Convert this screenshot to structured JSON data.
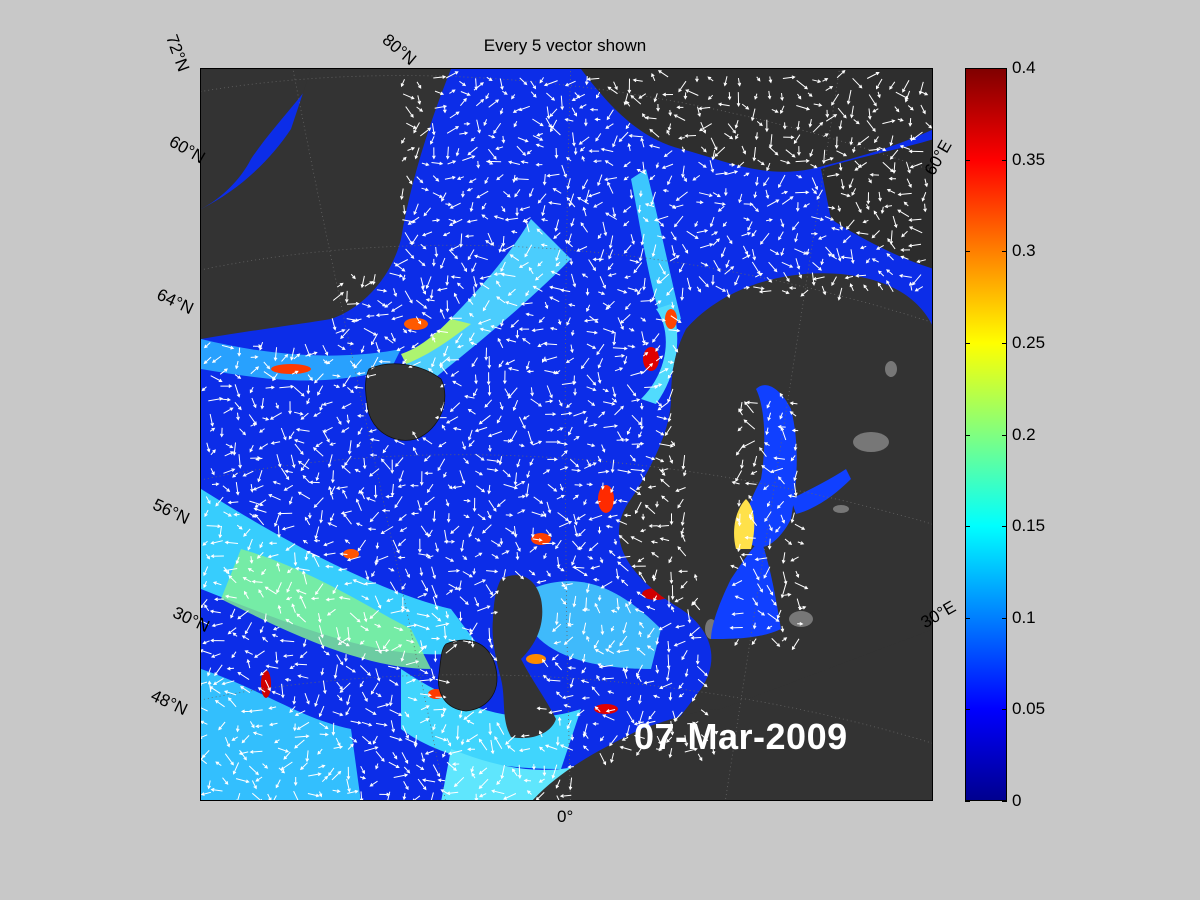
{
  "figure": {
    "title": "Every 5 vector shown",
    "date_stamp": "07-Mar-2009"
  },
  "map": {
    "lat_labels": [
      "72°N",
      "60°N",
      "64°N",
      "56°N",
      "30°N",
      "48°N"
    ],
    "lon_labels": [
      "80°N",
      "60°E",
      "30°E",
      "0°"
    ],
    "colors": {
      "land": "#333333",
      "lakes": "#777777",
      "vectors": "#ffffff"
    }
  },
  "colorbar": {
    "min": 0,
    "max": 0.4,
    "ticks": [
      "0.4",
      "0.35",
      "0.3",
      "0.25",
      "0.2",
      "0.15",
      "0.1",
      "0.05",
      "0"
    ],
    "colormap": "jet"
  }
}
